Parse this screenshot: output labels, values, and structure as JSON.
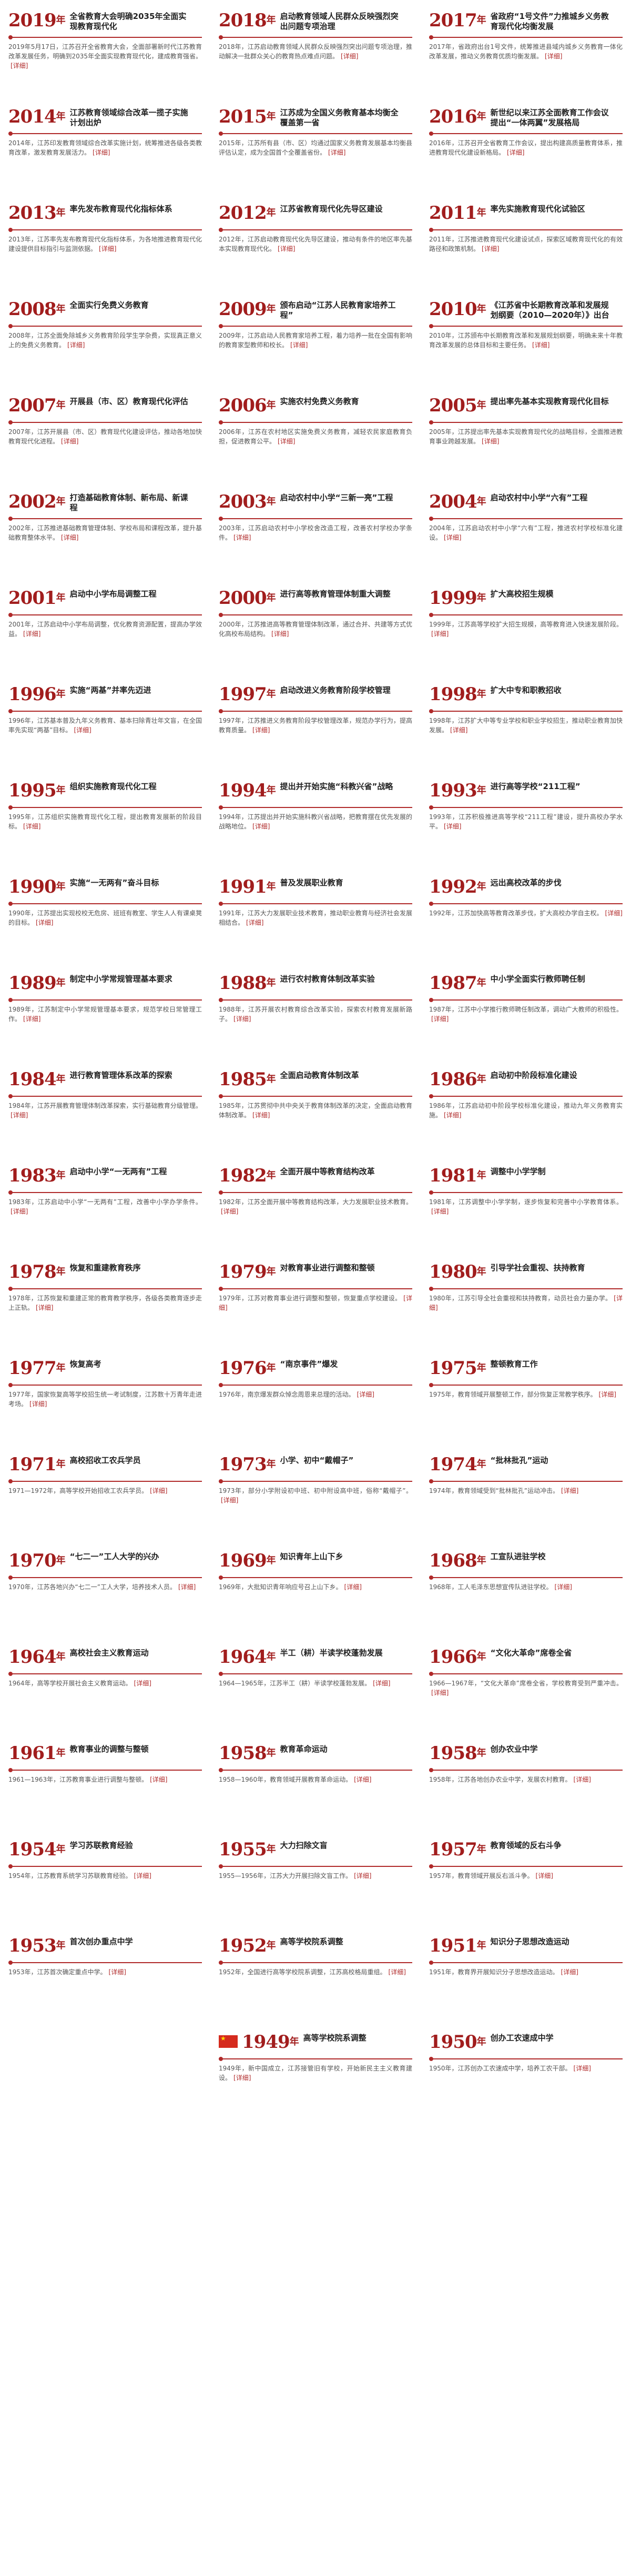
{
  "entries": [
    {
      "year": "2019",
      "suffix": "年",
      "title": "全省教育大会明确2035年全面实现教育现代化",
      "text": "2019年5月17日，江苏召开全省教育大会，全面部署新时代江苏教育改革发展任务，明确到2035年全面实现教育现代化，建成教育强省。",
      "more": "[详细]"
    },
    {
      "year": "2018",
      "suffix": "年",
      "title": "启动教育领域人民群众反映强烈突出问题专项治理",
      "text": "2018年，江苏启动教育领域人民群众反映强烈突出问题专项治理，推动解决一批群众关心的教育热点难点问题。",
      "more": "[详细]"
    },
    {
      "year": "2017",
      "suffix": "年",
      "title": "省政府“1号文件”力推城乡义务教育现代化均衡发展",
      "text": "2017年，省政府出台1号文件，统筹推进县域内城乡义务教育一体化改革发展，推动义务教育优质均衡发展。",
      "more": "[详细]"
    },
    {
      "year": "2014",
      "suffix": "年",
      "title": "江苏教育领域综合改革一揽子实施计划出炉",
      "text": "2014年，江苏印发教育领域综合改革实施计划，统筹推进各级各类教育改革，激发教育发展活力。",
      "more": "[详细]"
    },
    {
      "year": "2015",
      "suffix": "年",
      "title": "江苏成为全国义务教育基本均衡全覆盖第一省",
      "text": "2015年，江苏所有县（市、区）均通过国家义务教育发展基本均衡县评估认定，成为全国首个全覆盖省份。",
      "more": "[详细]"
    },
    {
      "year": "2016",
      "suffix": "年",
      "title": "新世纪以来江苏全面教育工作会议提出“一体两翼”发展格局",
      "text": "2016年，江苏召开全省教育工作会议，提出构建高质量教育体系，推进教育现代化建设新格局。",
      "more": "[详细]"
    },
    {
      "year": "2013",
      "suffix": "年",
      "title": "率先发布教育现代化指标体系",
      "text": "2013年，江苏率先发布教育现代化指标体系，为各地推进教育现代化建设提供目标指引与监测依据。",
      "more": "[详细]"
    },
    {
      "year": "2012",
      "suffix": "年",
      "title": "江苏省教育现代化先导区建设",
      "text": "2012年，江苏启动教育现代化先导区建设，推动有条件的地区率先基本实现教育现代化。",
      "more": "[详细]"
    },
    {
      "year": "2011",
      "suffix": "年",
      "title": "率先实施教育现代化试验区",
      "text": "2011年，江苏推进教育现代化建设试点，探索区域教育现代化的有效路径和政策机制。",
      "more": "[详细]"
    },
    {
      "year": "2008",
      "suffix": "年",
      "title": "全面实行免费义务教育",
      "text": "2008年，江苏全面免除城乡义务教育阶段学生学杂费，实现真正意义上的免费义务教育。",
      "more": "[详细]"
    },
    {
      "year": "2009",
      "suffix": "年",
      "title": "颁布启动“江苏人民教育家培养工程”",
      "text": "2009年，江苏启动人民教育家培养工程，着力培养一批在全国有影响的教育家型教师和校长。",
      "more": "[详细]"
    },
    {
      "year": "2010",
      "suffix": "年",
      "title": "《江苏省中长期教育改革和发展规划纲要（2010—2020年）》出台",
      "text": "2010年，江苏颁布中长期教育改革和发展规划纲要，明确未来十年教育改革发展的总体目标和主要任务。",
      "more": "[详细]"
    },
    {
      "year": "2007",
      "suffix": "年",
      "title": "开展县（市、区）教育现代化评估",
      "text": "2007年，江苏开展县（市、区）教育现代化建设评估，推动各地加快教育现代化进程。",
      "more": "[详细]"
    },
    {
      "year": "2006",
      "suffix": "年",
      "title": "实施农村免费义务教育",
      "text": "2006年，江苏在农村地区实施免费义务教育，减轻农民家庭教育负担，促进教育公平。",
      "more": "[详细]"
    },
    {
      "year": "2005",
      "suffix": "年",
      "title": "提出率先基本实现教育现代化目标",
      "text": "2005年，江苏提出率先基本实现教育现代化的战略目标，全面推进教育事业跨越发展。",
      "more": "[详细]"
    },
    {
      "year": "2002",
      "suffix": "年",
      "title": "打造基础教育体制、新布局、新课程",
      "text": "2002年，江苏推进基础教育管理体制、学校布局和课程改革，提升基础教育整体水平。",
      "more": "[详细]"
    },
    {
      "year": "2003",
      "suffix": "年",
      "title": "启动农村中小学“三新一亮”工程",
      "text": "2003年，江苏启动农村中小学校舍改造工程，改善农村学校办学条件。",
      "more": "[详细]"
    },
    {
      "year": "2004",
      "suffix": "年",
      "title": "启动农村中小学“六有”工程",
      "text": "2004年，江苏启动农村中小学“六有”工程，推进农村学校标准化建设。",
      "more": "[详细]"
    },
    {
      "year": "2001",
      "suffix": "年",
      "title": "启动中小学布局调整工程",
      "text": "2001年，江苏启动中小学布局调整，优化教育资源配置，提高办学效益。",
      "more": "[详细]"
    },
    {
      "year": "2000",
      "suffix": "年",
      "title": "进行高等教育管理体制重大调整",
      "text": "2000年，江苏推进高等教育管理体制改革，通过合并、共建等方式优化高校布局结构。",
      "more": "[详细]"
    },
    {
      "year": "1999",
      "suffix": "年",
      "title": "扩大高校招生规模",
      "text": "1999年，江苏高等学校扩大招生规模，高等教育进入快速发展阶段。",
      "more": "[详细]"
    },
    {
      "year": "1996",
      "suffix": "年",
      "title": "实施“两基”并率先迈进",
      "text": "1996年，江苏基本普及九年义务教育、基本扫除青壮年文盲，在全国率先实现“两基”目标。",
      "more": "[详细]"
    },
    {
      "year": "1997",
      "suffix": "年",
      "title": "启动改进义务教育阶段学校管理",
      "text": "1997年，江苏推进义务教育阶段学校管理改革，规范办学行为，提高教育质量。",
      "more": "[详细]"
    },
    {
      "year": "1998",
      "suffix": "年",
      "title": "扩大中专和职教招收",
      "text": "1998年，江苏扩大中等专业学校和职业学校招生，推动职业教育加快发展。",
      "more": "[详细]"
    },
    {
      "year": "1995",
      "suffix": "年",
      "title": "组织实施教育现代化工程",
      "text": "1995年，江苏组织实施教育现代化工程，提出教育发展新的阶段目标。",
      "more": "[详细]"
    },
    {
      "year": "1994",
      "suffix": "年",
      "title": "提出并开始实施“科教兴省”战略",
      "text": "1994年，江苏提出并开始实施科教兴省战略，把教育摆在优先发展的战略地位。",
      "more": "[详细]"
    },
    {
      "year": "1993",
      "suffix": "年",
      "title": "进行高等学校“211工程”",
      "text": "1993年，江苏积极推进高等学校“211工程”建设，提升高校办学水平。",
      "more": "[详细]"
    },
    {
      "year": "1990",
      "suffix": "年",
      "title": "实施“一无两有”奋斗目标",
      "text": "1990年，江苏提出实现校校无危房、班班有教室、学生人人有课桌凳的目标。",
      "more": "[详细]"
    },
    {
      "year": "1991",
      "suffix": "年",
      "title": "普及发展职业教育",
      "text": "1991年，江苏大力发展职业技术教育，推动职业教育与经济社会发展相结合。",
      "more": "[详细]"
    },
    {
      "year": "1992",
      "suffix": "年",
      "title": "远出高校改革的步伐",
      "text": "1992年，江苏加快高等教育改革步伐，扩大高校办学自主权。",
      "more": "[详细]"
    },
    {
      "year": "1989",
      "suffix": "年",
      "title": "制定中小学常规管理基本要求",
      "text": "1989年，江苏制定中小学常规管理基本要求，规范学校日常管理工作。",
      "more": "[详细]"
    },
    {
      "year": "1988",
      "suffix": "年",
      "title": "进行农村教育体制改革实验",
      "text": "1988年，江苏开展农村教育综合改革实验，探索农村教育发展新路子。",
      "more": "[详细]"
    },
    {
      "year": "1987",
      "suffix": "年",
      "title": "中小学全面实行教师聘任制",
      "text": "1987年，江苏中小学推行教师聘任制改革，调动广大教师的积极性。",
      "more": "[详细]"
    },
    {
      "year": "1984",
      "suffix": "年",
      "title": "进行教育管理体系改革的探索",
      "text": "1984年，江苏开展教育管理体制改革探索，实行基础教育分级管理。",
      "more": "[详细]"
    },
    {
      "year": "1985",
      "suffix": "年",
      "title": "全面启动教育体制改革",
      "text": "1985年，江苏贯彻中共中央关于教育体制改革的决定，全面启动教育体制改革。",
      "more": "[详细]"
    },
    {
      "year": "1986",
      "suffix": "年",
      "title": "启动初中阶段标准化建设",
      "text": "1986年，江苏启动初中阶段学校标准化建设，推动九年义务教育实施。",
      "more": "[详细]"
    },
    {
      "year": "1983",
      "suffix": "年",
      "title": "启动中小学“一无两有”工程",
      "text": "1983年，江苏启动中小学“一无两有”工程，改善中小学办学条件。",
      "more": "[详细]"
    },
    {
      "year": "1982",
      "suffix": "年",
      "title": "全面开展中等教育结构改革",
      "text": "1982年，江苏全面开展中等教育结构改革，大力发展职业技术教育。",
      "more": "[详细]"
    },
    {
      "year": "1981",
      "suffix": "年",
      "title": "调整中小学学制",
      "text": "1981年，江苏调整中小学学制，逐步恢复和完善中小学教育体系。",
      "more": "[详细]"
    },
    {
      "year": "1978",
      "suffix": "年",
      "title": "恢复和重建教育秩序",
      "text": "1978年，江苏恢复和重建正常的教育教学秩序，各级各类教育逐步走上正轨。",
      "more": "[详细]"
    },
    {
      "year": "1979",
      "suffix": "年",
      "title": "对教育事业进行调整和整顿",
      "text": "1979年，江苏对教育事业进行调整和整顿，恢复重点学校建设。",
      "more": "[详细]"
    },
    {
      "year": "1980",
      "suffix": "年",
      "title": "引导学社会重视、扶持教育",
      "text": "1980年，江苏引导全社会重视和扶持教育，动员社会力量办学。",
      "more": "[详细]"
    },
    {
      "year": "1977",
      "suffix": "年",
      "title": "恢复高考",
      "text": "1977年，国家恢复高等学校招生统一考试制度，江苏数十万青年走进考场。",
      "more": "[详细]"
    },
    {
      "year": "1976",
      "suffix": "年",
      "title": "“南京事件”爆发",
      "text": "1976年，南京爆发群众悼念周恩来总理的活动。",
      "more": "[详细]"
    },
    {
      "year": "1975",
      "suffix": "年",
      "title": "整顿教育工作",
      "text": "1975年，教育领域开展整顿工作，部分恢复正常教学秩序。",
      "more": "[详细]"
    },
    {
      "year": "1971",
      "suffix": "年",
      "title": "高校招收工农兵学员",
      "text": "1971—1972年，高等学校开始招收工农兵学员。",
      "more": "[详细]"
    },
    {
      "year": "1973",
      "suffix": "年",
      "title": "小学、初中“戴帽子”",
      "text": "1973年，部分小学附设初中班、初中附设高中班，俗称“戴帽子”。",
      "more": "[详细]"
    },
    {
      "year": "1974",
      "suffix": "年",
      "title": "“批林批孔”运动",
      "text": "1974年，教育领域受到“批林批孔”运动冲击。",
      "more": "[详细]"
    },
    {
      "year": "1970",
      "suffix": "年",
      "title": "“七二一”工人大学的兴办",
      "text": "1970年，江苏各地兴办“七二一”工人大学，培养技术人员。",
      "more": "[详细]"
    },
    {
      "year": "1969",
      "suffix": "年",
      "title": "知识青年上山下乡",
      "text": "1969年，大批知识青年响应号召上山下乡。",
      "more": "[详细]"
    },
    {
      "year": "1968",
      "suffix": "年",
      "title": "工宣队进驻学校",
      "text": "1968年，工人毛泽东思想宣传队进驻学校。",
      "more": "[详细]"
    },
    {
      "year": "1964",
      "suffix": "年",
      "title": "高校社会主义教育运动",
      "text": "1964年，高等学校开展社会主义教育运动。",
      "more": "[详细]"
    },
    {
      "year": "1964",
      "suffix": "年",
      "title": "半工（耕）半读学校蓬勃发展",
      "text": "1964—1965年，江苏半工（耕）半读学校蓬勃发展。",
      "more": "[详细]"
    },
    {
      "year": "1966",
      "suffix": "年",
      "title": "“文化大革命”席卷全省",
      "text": "1966—1967年，“文化大革命”席卷全省，学校教育受到严重冲击。",
      "more": "[详细]"
    },
    {
      "year": "1961",
      "suffix": "年",
      "title": "教育事业的调整与整顿",
      "text": "1961—1963年，江苏教育事业进行调整与整顿。",
      "more": "[详细]"
    },
    {
      "year": "1958",
      "suffix": "年",
      "title": "教育革命运动",
      "text": "1958—1960年，教育领域开展教育革命运动。",
      "more": "[详细]"
    },
    {
      "year": "1958",
      "suffix": "年",
      "title": "创办农业中学",
      "text": "1958年，江苏各地创办农业中学，发展农村教育。",
      "more": "[详细]"
    },
    {
      "year": "1954",
      "suffix": "年",
      "title": "学习苏联教育经验",
      "text": "1954年，江苏教育系统学习苏联教育经验。",
      "more": "[详细]"
    },
    {
      "year": "1955",
      "suffix": "年",
      "title": "大力扫除文盲",
      "text": "1955—1956年，江苏大力开展扫除文盲工作。",
      "more": "[详细]"
    },
    {
      "year": "1957",
      "suffix": "年",
      "title": "教育领域的反右斗争",
      "text": "1957年，教育领域开展反右派斗争。",
      "more": "[详细]"
    },
    {
      "year": "1953",
      "suffix": "年",
      "title": "首次创办重点中学",
      "text": "1953年，江苏首次确定重点中学。",
      "more": "[详细]"
    },
    {
      "year": "1952",
      "suffix": "年",
      "title": "高等学校院系调整",
      "text": "1952年，全国进行高等学校院系调整，江苏高校格局重组。",
      "more": "[详细]"
    },
    {
      "year": "1951",
      "suffix": "年",
      "title": "知识分子思想改造运动",
      "text": "1951年，教育界开展知识分子思想改造运动。",
      "more": "[详细]"
    },
    {
      "year": "1949",
      "suffix": "年",
      "title": "高等学校院系调整",
      "text": "1949年，新中国成立，江苏接管旧有学校，开始新民主主义教育建设。",
      "more": "[详细]"
    },
    {
      "year": "1950",
      "suffix": "年",
      "title": "创办工农速成中学",
      "text": "1950年，江苏创办工农速成中学，培养工农干部。",
      "more": "[详细]"
    }
  ]
}
